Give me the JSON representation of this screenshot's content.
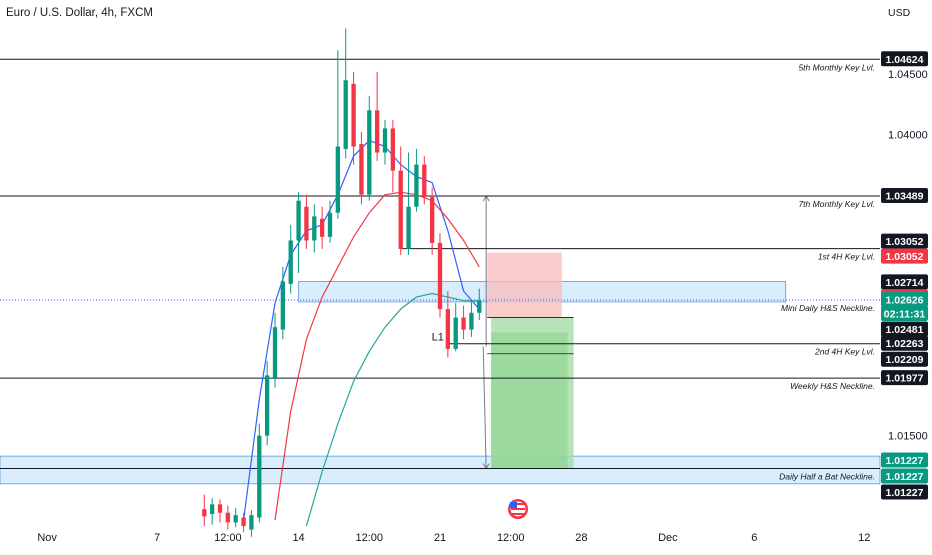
{
  "header": {
    "title": "Euro / U.S. Dollar, 4h, FXCM",
    "currency": "USD"
  },
  "colors": {
    "bull": "#089981",
    "bear": "#f23645",
    "ema_fast": "#2962ff",
    "ema_mid": "#f23645",
    "ema_slow": "#26a69a",
    "zone_fill": "#bbdefb",
    "zone_border": "#5b9bd5",
    "risk": "#f8bbbb",
    "reward": "#a5dca5"
  },
  "chart_data": {
    "type": "candlestick",
    "symbol": "Euro / U.S. Dollar",
    "timeframe": "4h",
    "ylim": [
      1.0075,
      1.0495
    ],
    "xlim": [
      0,
      112
    ],
    "x_ticks": [
      {
        "label": "Nov",
        "x": 6
      },
      {
        "label": "7",
        "x": 20
      },
      {
        "label": "12:00",
        "x": 29
      },
      {
        "label": "14",
        "x": 38
      },
      {
        "label": "12:00",
        "x": 47
      },
      {
        "label": "21",
        "x": 56
      },
      {
        "label": "12:00",
        "x": 65
      },
      {
        "label": "28",
        "x": 74
      },
      {
        "label": "Dec",
        "x": 85
      },
      {
        "label": "6",
        "x": 96
      },
      {
        "label": "12",
        "x": 110
      }
    ],
    "y_ticks": [
      "1.04500",
      "1.04000",
      "1.01500"
    ],
    "key_levels": [
      {
        "price": 1.04624,
        "label": "5th Monthly Key Lvl.",
        "x0": 0,
        "x1": 112
      },
      {
        "price": 1.03489,
        "label": "7th Monthly Key Lvl.",
        "x0": 0,
        "x1": 112
      },
      {
        "price": 1.03052,
        "label": "1st 4H Key Lvl.",
        "x0": 51,
        "x1": 112
      },
      {
        "price": 1.02626,
        "label": "Mini Daily H&S Neckline.",
        "x0": 0,
        "x1": 112
      },
      {
        "price": 1.02263,
        "label": "2nd 4H Key Lvl.",
        "x0": 57,
        "x1": 112
      },
      {
        "price": 1.01977,
        "label": "Weekly H&S Neckline.",
        "x0": 0,
        "x1": 112
      },
      {
        "price": 1.01227,
        "label": "Daily Half a Bat Neckline.",
        "x0": 0,
        "x1": 112
      }
    ],
    "zones": [
      {
        "from": 1.0261,
        "to": 1.0278,
        "x0": 38,
        "x1": 100
      },
      {
        "from": 1.011,
        "to": 1.0133,
        "x0": 0,
        "x1": 112
      }
    ],
    "position": {
      "x0": 62,
      "x1": 73,
      "entry": 1.02481,
      "stop": 1.0302,
      "target": 1.01227,
      "stop_x1": 71.5,
      "target_x0": 62.5
    },
    "price_tags": [
      {
        "text": "1.04624",
        "color": "#131722"
      },
      {
        "text": "1.03489",
        "color": "#131722"
      },
      {
        "text": "1.03052",
        "color": "#131722"
      },
      {
        "text": "1.03052",
        "color": "#f23645"
      },
      {
        "text": "1.02714",
        "color": "#131722"
      },
      {
        "text": "1.02714",
        "color": "#f23645"
      },
      {
        "text": "1.02626",
        "color": "#089981"
      },
      {
        "text": "02:11:31",
        "color": "#089981"
      },
      {
        "text": "1.02481",
        "color": "#131722"
      },
      {
        "text": "1.02263",
        "color": "#131722"
      },
      {
        "text": "1.02209",
        "color": "#131722"
      },
      {
        "text": "1.01977",
        "color": "#131722"
      },
      {
        "text": "1.01227",
        "color": "#089981"
      },
      {
        "text": "1.01227",
        "color": "#089981"
      },
      {
        "text": "1.01227",
        "color": "#131722"
      }
    ],
    "annotations": [
      {
        "text": "L1",
        "x": 56.5,
        "price": 1.0229
      }
    ],
    "candles": [
      [
        26,
        1.0089,
        1.0083,
        1.0101,
        1.0075
      ],
      [
        27,
        1.0085,
        1.0093,
        1.0098,
        1.0076
      ],
      [
        28,
        1.0093,
        1.0086,
        1.0097,
        1.0078
      ],
      [
        29,
        1.0086,
        1.0078,
        1.0092,
        1.0072
      ],
      [
        30,
        1.0078,
        1.0084,
        1.009,
        1.0074
      ],
      [
        31,
        1.0082,
        1.0075,
        1.0086,
        1.007
      ],
      [
        32,
        1.0072,
        1.0084,
        1.0088,
        1.0066
      ],
      [
        33,
        1.0082,
        1.015,
        1.016,
        1.0078
      ],
      [
        34,
        1.015,
        1.02,
        1.0212,
        1.0142
      ],
      [
        35,
        1.0198,
        1.024,
        1.0252,
        1.019
      ],
      [
        36,
        1.0238,
        1.0278,
        1.029,
        1.023
      ],
      [
        37,
        1.0276,
        1.0312,
        1.0325,
        1.0268
      ],
      [
        38,
        1.0312,
        1.0345,
        1.0352,
        1.0285
      ],
      [
        39,
        1.034,
        1.0312,
        1.035,
        1.0305
      ],
      [
        40,
        1.0312,
        1.0332,
        1.0342,
        1.0302
      ],
      [
        41,
        1.033,
        1.0315,
        1.034,
        1.0305
      ],
      [
        42,
        1.0315,
        1.0335,
        1.0345,
        1.031
      ],
      [
        43,
        1.0335,
        1.039,
        1.047,
        1.033
      ],
      [
        44,
        1.0388,
        1.0445,
        1.0488,
        1.038
      ],
      [
        45,
        1.0442,
        1.039,
        1.0452,
        1.0375
      ],
      [
        46,
        1.0392,
        1.035,
        1.0402,
        1.0342
      ],
      [
        47,
        1.035,
        1.042,
        1.0432,
        1.0345
      ],
      [
        48,
        1.042,
        1.0385,
        1.0452,
        1.0378
      ],
      [
        49,
        1.0385,
        1.0405,
        1.0412,
        1.0375
      ],
      [
        50,
        1.0405,
        1.037,
        1.0412,
        1.0352
      ],
      [
        51,
        1.037,
        1.0305,
        1.039,
        1.03
      ],
      [
        52,
        1.0305,
        1.034,
        1.0385,
        1.03
      ],
      [
        53,
        1.034,
        1.0375,
        1.0388,
        1.0336
      ],
      [
        54,
        1.0375,
        1.0348,
        1.0382,
        1.0342
      ],
      [
        55,
        1.0348,
        1.031,
        1.0356,
        1.03
      ],
      [
        56,
        1.031,
        1.0255,
        1.0318,
        1.0248
      ],
      [
        57,
        1.0255,
        1.0222,
        1.027,
        1.0215
      ],
      [
        58,
        1.0222,
        1.0248,
        1.026,
        1.022
      ],
      [
        59,
        1.0248,
        1.0238,
        1.0258,
        1.023
      ],
      [
        60,
        1.0238,
        1.0252,
        1.0262,
        1.0232
      ],
      [
        61,
        1.0252,
        1.0262,
        1.0272,
        1.0246
      ]
    ],
    "series": [
      {
        "name": "fast",
        "color": "#2962ff",
        "points": [
          [
            31,
            1.008
          ],
          [
            33,
            1.018
          ],
          [
            35,
            1.026
          ],
          [
            37,
            1.03
          ],
          [
            39,
            1.032
          ],
          [
            41,
            1.0325
          ],
          [
            43,
            1.035
          ],
          [
            45,
            1.0382
          ],
          [
            47,
            1.0395
          ],
          [
            49,
            1.039
          ],
          [
            51,
            1.0375
          ],
          [
            53,
            1.0365
          ],
          [
            55,
            1.036
          ],
          [
            57,
            1.032
          ],
          [
            59,
            1.027
          ],
          [
            61,
            1.0255
          ]
        ]
      },
      {
        "name": "mid",
        "color": "#f23645",
        "points": [
          [
            35,
            1.008
          ],
          [
            37,
            1.017
          ],
          [
            39,
            1.023
          ],
          [
            41,
            1.0265
          ],
          [
            43,
            1.029
          ],
          [
            45,
            1.0315
          ],
          [
            47,
            1.0335
          ],
          [
            49,
            1.035
          ],
          [
            51,
            1.0352
          ],
          [
            53,
            1.035
          ],
          [
            55,
            1.0345
          ],
          [
            57,
            1.033
          ],
          [
            59,
            1.0312
          ],
          [
            61,
            1.029
          ]
        ]
      },
      {
        "name": "slow",
        "color": "#26a69a",
        "points": [
          [
            39,
            1.0075
          ],
          [
            41,
            1.012
          ],
          [
            43,
            1.016
          ],
          [
            45,
            1.0195
          ],
          [
            47,
            1.022
          ],
          [
            49,
            1.024
          ],
          [
            51,
            1.0255
          ],
          [
            53,
            1.0265
          ],
          [
            55,
            1.0268
          ],
          [
            57,
            1.0265
          ],
          [
            59,
            1.0262
          ],
          [
            61,
            1.0262
          ]
        ]
      }
    ]
  }
}
